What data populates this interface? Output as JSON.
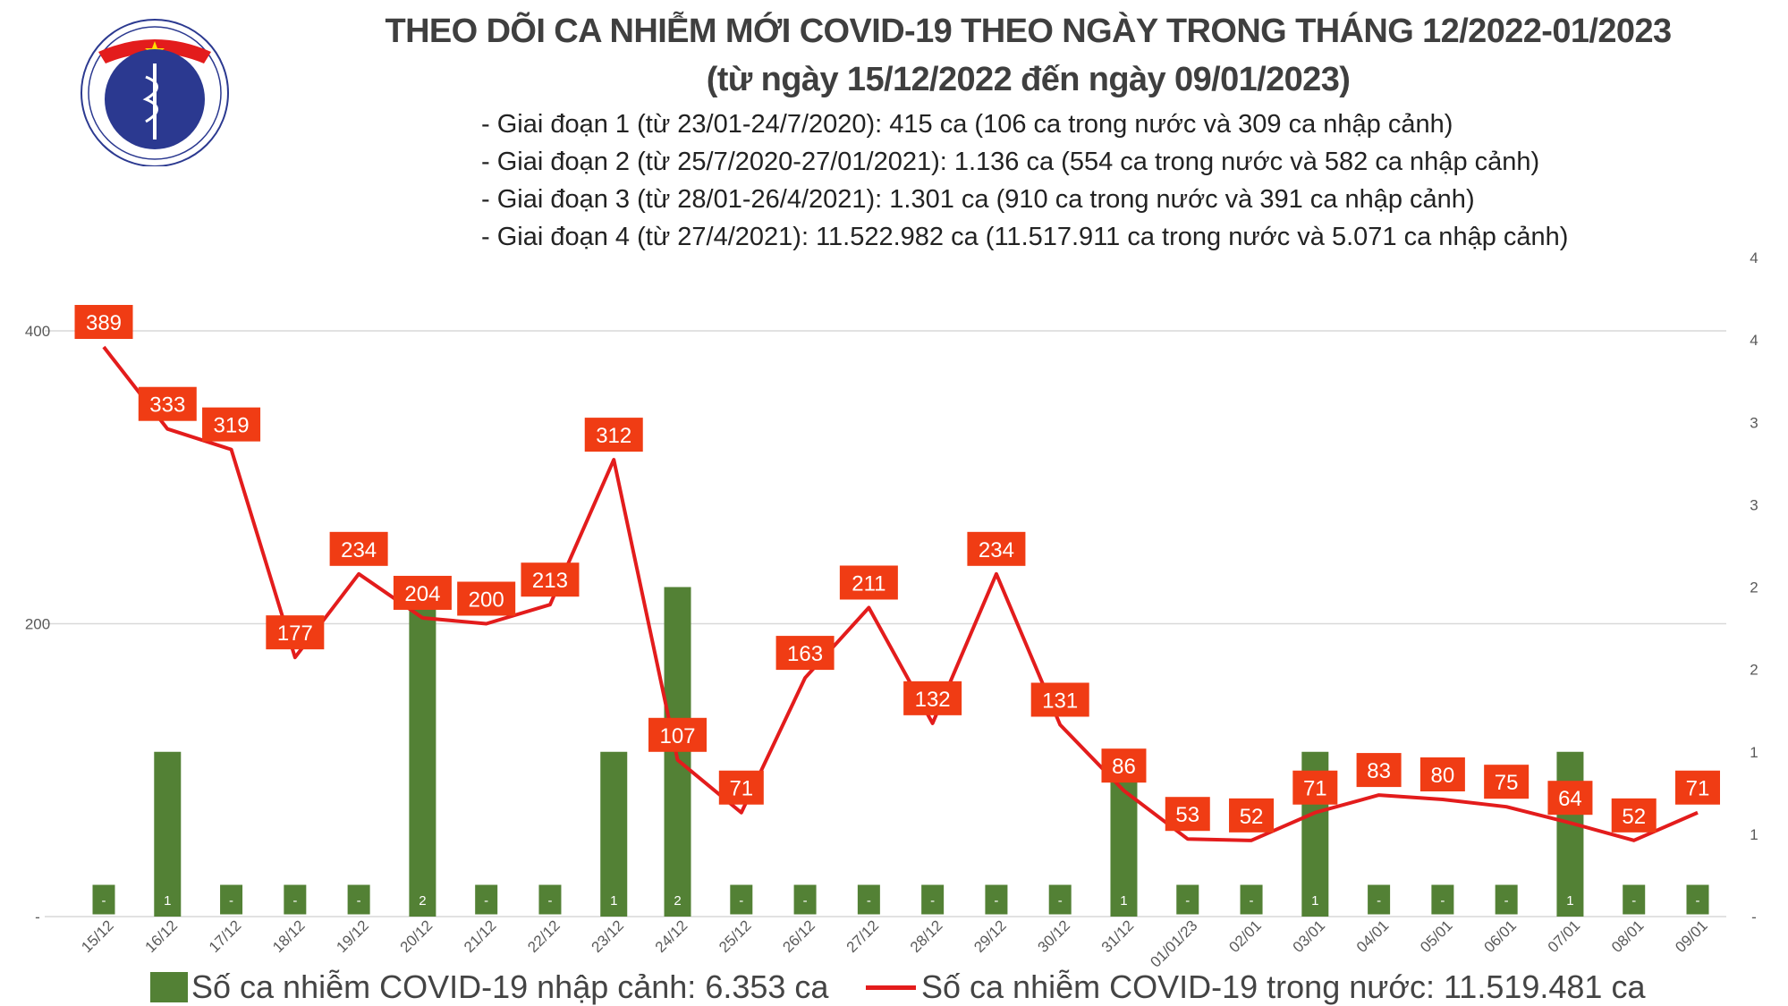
{
  "header": {
    "logo_text": "BỘ Y TẾ · MINISTRY OF HEALTH",
    "title": "THEO DÕI CA NHIỄM MỚI COVID-19 THEO NGÀY TRONG THÁNG 12/2022-01/2023",
    "subtitle": "(từ ngày 15/12/2022 đến ngày 09/01/2023)",
    "phases": [
      "- Giai đoạn 1 (từ 23/01-24/7/2020): 415 ca (106 ca trong nước và 309 ca nhập cảnh)",
      "- Giai đoạn 2 (từ 25/7/2020-27/01/2021): 1.136 ca (554 ca trong nước và 582 ca nhập cảnh)",
      "- Giai đoạn 3 (từ 28/01-26/4/2021): 1.301 ca (910 ca trong nước và 391 ca nhập cảnh)",
      "- Giai đoạn 4 (từ 27/4/2021): 11.522.982 ca (11.517.911 ca trong nước và 5.071 ca nhập cảnh)"
    ]
  },
  "chart_data": {
    "type": "bar+line",
    "categories": [
      "15/12",
      "16/12",
      "17/12",
      "18/12",
      "19/12",
      "20/12",
      "21/12",
      "22/12",
      "23/12",
      "24/12",
      "25/12",
      "26/12",
      "27/12",
      "28/12",
      "29/12",
      "30/12",
      "31/12",
      "01/01/23",
      "02/01",
      "03/01",
      "04/01",
      "05/01",
      "06/01",
      "07/01",
      "08/01",
      "09/01"
    ],
    "series": [
      {
        "name": "Số ca nhiễm COVID-19 nhập cảnh: 6.353 ca",
        "type": "bar",
        "axis": "right",
        "color": "#538135",
        "values": [
          0,
          1,
          0,
          0,
          0,
          2,
          0,
          0,
          1,
          2,
          0,
          0,
          0,
          0,
          0,
          0,
          1,
          0,
          0,
          1,
          0,
          0,
          0,
          1,
          0,
          0
        ]
      },
      {
        "name": "Số ca nhiễm COVID-19 trong nước: 11.519.481 ca",
        "type": "line",
        "axis": "left",
        "color": "#e31c1c",
        "values": [
          389,
          333,
          319,
          177,
          234,
          204,
          200,
          213,
          312,
          107,
          71,
          163,
          211,
          132,
          234,
          131,
          86,
          53,
          52,
          71,
          83,
          80,
          75,
          64,
          52,
          71
        ]
      }
    ],
    "left_axis": {
      "ylim": [
        0,
        400
      ],
      "ticks": [
        "-",
        "200",
        "400"
      ]
    },
    "right_axis": {
      "ylim": [
        0,
        4
      ],
      "ticks": [
        "-",
        "1",
        "1",
        "2",
        "2",
        "3",
        "3",
        "4",
        "4"
      ]
    },
    "zero_label": "-",
    "label_box_color": "#f03c14",
    "grid": true,
    "legend": "bottom"
  }
}
